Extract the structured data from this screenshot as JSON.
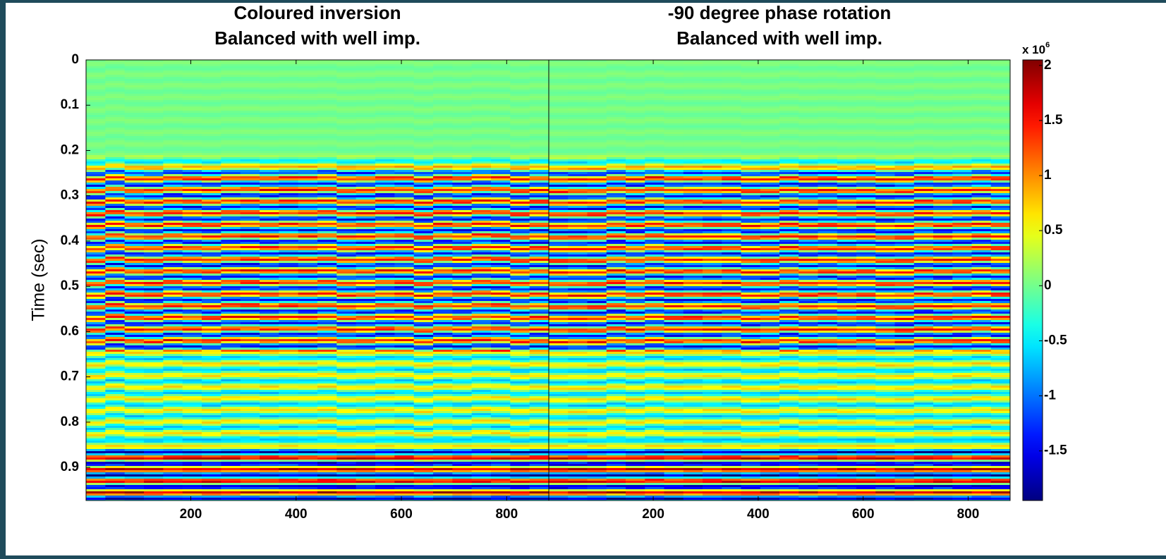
{
  "chart_data": [
    {
      "type": "heatmap",
      "title": "Coloured inversion",
      "subtitle": "Balanced with well imp.",
      "ylabel": "Time (sec)",
      "ylim": [
        0,
        0.973
      ],
      "yticks": [
        0,
        0.1,
        0.2,
        0.3,
        0.4,
        0.5,
        0.6,
        0.7,
        0.8,
        0.9
      ],
      "y_inverted": true,
      "xlim": [
        1,
        880
      ],
      "xticks": [
        200,
        400,
        600,
        800
      ],
      "colormap": "jet"
    },
    {
      "type": "heatmap",
      "title": "-90 degree phase rotation",
      "subtitle": "Balanced with well imp.",
      "ylim": [
        0,
        0.973
      ],
      "y_inverted": true,
      "xlim": [
        1,
        880
      ],
      "xticks": [
        200,
        400,
        600,
        800
      ],
      "colormap": "jet",
      "colorbar": {
        "clim": [
          -1.95,
          2.05
        ],
        "ticks": [
          2,
          1.5,
          1,
          0.5,
          0,
          -0.5,
          -1,
          -1.5
        ],
        "scale_label": "x 10",
        "scale_exponent": "6"
      }
    }
  ]
}
